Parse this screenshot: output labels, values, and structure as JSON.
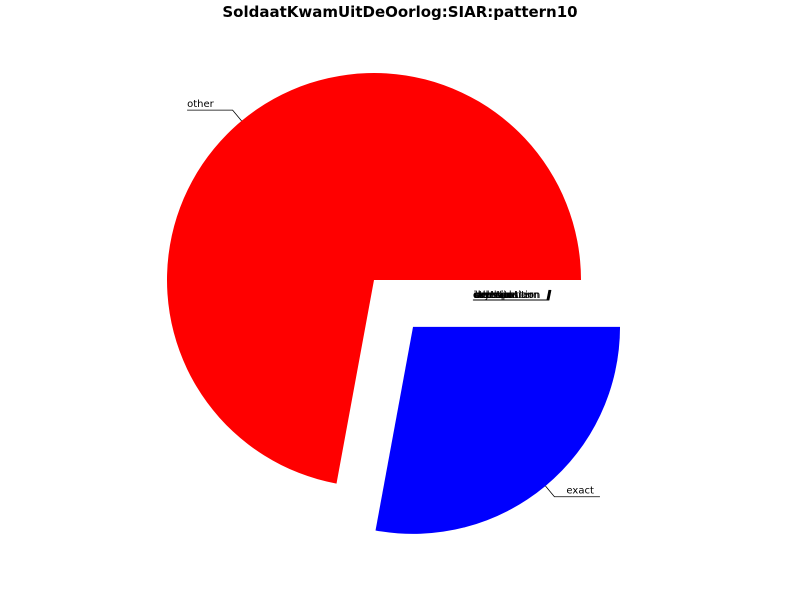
{
  "chart_data": {
    "type": "pie",
    "title": "SoldaatKwamUitDeOorlog:SIAR:pattern10",
    "slices": [
      {
        "label": "other",
        "value": 72.1,
        "color": "#ff0000",
        "exploded": false
      },
      {
        "label": "exact",
        "value": 27.9,
        "color": "#0000ff",
        "exploded": true
      }
    ],
    "zero_slices": [
      {
        "label": "transposition",
        "value": 0
      },
      {
        "label": "insertion",
        "value": 0
      },
      {
        "label": "deletion",
        "value": 0
      },
      {
        "label": "substitution",
        "value": 0
      },
      {
        "label": "rhythm",
        "value": 0
      },
      {
        "label": "interval",
        "value": 0
      },
      {
        "label": "contour",
        "value": 0
      },
      {
        "label": "other-pattern",
        "value": 0
      }
    ],
    "legend": false
  }
}
